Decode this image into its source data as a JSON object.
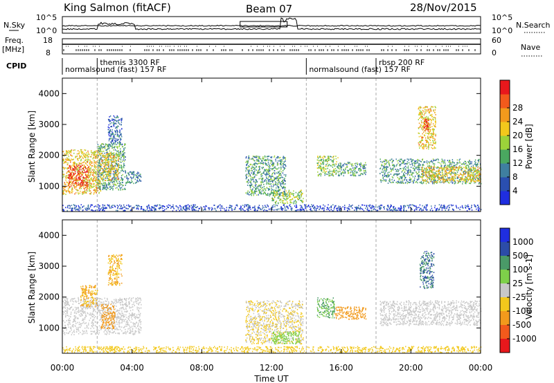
{
  "header": {
    "station": "King Salmon (fitACF)",
    "beam": "Beam 07",
    "date": "28/Nov/2015"
  },
  "strips": {
    "nsky_label": "N.Sky",
    "nsearch_label": "N.Search",
    "nsky_ticks": [
      "10^5",
      "10^0"
    ],
    "nsearch_ticks": [
      "10^5",
      "10^0"
    ],
    "freq_label": "Freq.",
    "freq_unit": "[MHz]",
    "freq_ticks": [
      "18",
      "8"
    ],
    "nave_label": "Nave",
    "nave_ticks": [
      "60",
      "0"
    ],
    "cpid_label": "CPID"
  },
  "cpid_segments": [
    {
      "label": "normalsound (fast) 157 RF",
      "start_h": 0,
      "end_h": 14
    },
    {
      "label": "themis 3300 RF",
      "start_h": 2,
      "end_h": 2.3
    },
    {
      "label": "normalsound (fast) 157 RF",
      "start_h": 14,
      "end_h": 24
    },
    {
      "label": "rbsp 200 RF",
      "start_h": 18,
      "end_h": 18.6
    }
  ],
  "axes": {
    "ylabel": "Slant Range [km]",
    "xlabel": "Time UT",
    "x_ticks": [
      "00:00",
      "04:00",
      "08:00",
      "12:00",
      "16:00",
      "20:00",
      "00:00"
    ],
    "y_ticks": [
      "1000",
      "2000",
      "3000",
      "4000"
    ]
  },
  "colorbars": {
    "power": {
      "title": "Power [dB]",
      "ticks": [
        "4",
        "8",
        "12",
        "16",
        "20",
        "24",
        "28"
      ],
      "colors": [
        "#1f2ee0",
        "#2a4fb0",
        "#3f7fa0",
        "#4aa860",
        "#9cd23a",
        "#f2c81c",
        "#f29a1c",
        "#f25a1c",
        "#e8181c"
      ]
    },
    "velocity": {
      "title": "Velocity [m s-1]",
      "ticks": [
        "1000",
        "500",
        "100",
        "25",
        "-25",
        "-100",
        "-500",
        "-1000"
      ],
      "colors": [
        "#1f2ee0",
        "#2c4ca8",
        "#4a9a68",
        "#7ed04a",
        "#c8c8c8",
        "#f2c81c",
        "#f29a1c",
        "#f25a1c",
        "#e8181c"
      ]
    }
  },
  "chart_data": [
    {
      "type": "heatmap",
      "title": "Power",
      "xlabel": "Time UT",
      "ylabel": "Slant Range [km]",
      "xlim": [
        0,
        24
      ],
      "ylim": [
        180,
        4500
      ],
      "colorbar_label": "Power [dB]",
      "regions": [
        {
          "t0": 0.0,
          "t1": 2.2,
          "r0": 750,
          "r1": 2200,
          "level": 20
        },
        {
          "t0": 0.3,
          "t1": 1.5,
          "r0": 1000,
          "r1": 1700,
          "level": 28
        },
        {
          "t0": 2.0,
          "t1": 3.6,
          "r0": 900,
          "r1": 2400,
          "level": 12
        },
        {
          "t0": 2.2,
          "t1": 3.2,
          "r0": 1200,
          "r1": 2100,
          "level": 20
        },
        {
          "t0": 3.6,
          "t1": 4.5,
          "r0": 1100,
          "r1": 1500,
          "level": 10
        },
        {
          "t0": 2.6,
          "t1": 3.4,
          "r0": 2400,
          "r1": 3300,
          "level": 8
        },
        {
          "t0": 0.0,
          "t1": 24.0,
          "r0": 220,
          "r1": 420,
          "level": 6
        },
        {
          "t0": 10.5,
          "t1": 12.8,
          "r0": 700,
          "r1": 2000,
          "level": 12
        },
        {
          "t0": 12.0,
          "t1": 13.8,
          "r0": 450,
          "r1": 900,
          "level": 16
        },
        {
          "t0": 14.6,
          "t1": 15.8,
          "r0": 1350,
          "r1": 2000,
          "level": 16
        },
        {
          "t0": 15.8,
          "t1": 17.4,
          "r0": 1350,
          "r1": 1800,
          "level": 12
        },
        {
          "t0": 18.2,
          "t1": 24.0,
          "r0": 1100,
          "r1": 1900,
          "level": 12
        },
        {
          "t0": 20.6,
          "t1": 24.0,
          "r0": 1150,
          "r1": 1650,
          "level": 20
        },
        {
          "t0": 20.4,
          "t1": 21.4,
          "r0": 2200,
          "r1": 3600,
          "level": 20
        },
        {
          "t0": 20.7,
          "t1": 21.0,
          "r0": 2800,
          "r1": 3200,
          "level": 28
        }
      ]
    },
    {
      "type": "heatmap",
      "title": "Velocity",
      "xlabel": "Time UT",
      "ylabel": "Slant Range [km]",
      "xlim": [
        0,
        24
      ],
      "ylim": [
        180,
        4500
      ],
      "colorbar_label": "Velocity [m s-1]",
      "regions": [
        {
          "t0": 0.0,
          "t1": 4.5,
          "r0": 800,
          "r1": 2000,
          "level": 0
        },
        {
          "t0": 1.0,
          "t1": 2.0,
          "r0": 1700,
          "r1": 2400,
          "level": -100
        },
        {
          "t0": 2.2,
          "t1": 3.0,
          "r0": 1000,
          "r1": 1800,
          "level": -200
        },
        {
          "t0": 2.6,
          "t1": 3.4,
          "r0": 2400,
          "r1": 3400,
          "level": -100
        },
        {
          "t0": 0.0,
          "t1": 24.0,
          "r0": 220,
          "r1": 420,
          "level": -50
        },
        {
          "t0": 10.5,
          "t1": 13.8,
          "r0": 500,
          "r1": 1900,
          "level": -25
        },
        {
          "t0": 12.0,
          "t1": 13.6,
          "r0": 500,
          "r1": 900,
          "level": 50
        },
        {
          "t0": 14.6,
          "t1": 15.6,
          "r0": 1350,
          "r1": 2000,
          "level": 100
        },
        {
          "t0": 15.6,
          "t1": 17.4,
          "r0": 1300,
          "r1": 1700,
          "level": -200
        },
        {
          "t0": 18.2,
          "t1": 24.0,
          "r0": 1100,
          "r1": 1900,
          "level": 0
        },
        {
          "t0": 20.5,
          "t1": 21.3,
          "r0": 2300,
          "r1": 3500,
          "level": 500
        }
      ]
    }
  ]
}
